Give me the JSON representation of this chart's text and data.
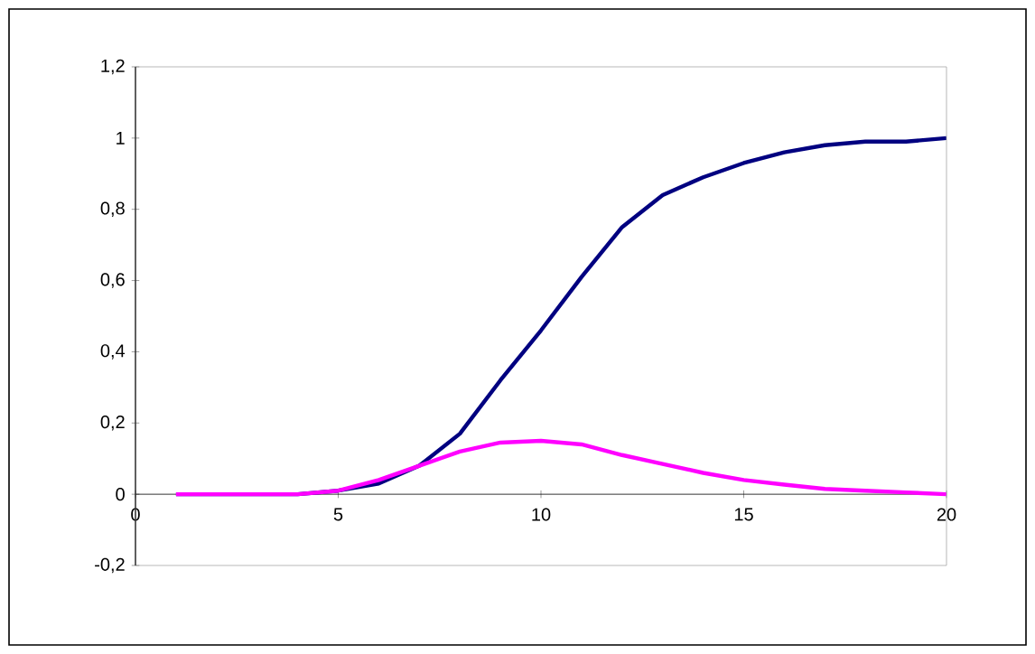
{
  "chart_data": {
    "type": "line",
    "x": [
      1,
      2,
      3,
      4,
      5,
      6,
      7,
      8,
      9,
      10,
      11,
      12,
      13,
      14,
      15,
      16,
      17,
      18,
      19,
      20
    ],
    "series": [
      {
        "color": "#000080",
        "values": [
          0,
          0,
          0,
          0,
          0.01,
          0.03,
          0.08,
          0.17,
          0.32,
          0.46,
          0.61,
          0.75,
          0.84,
          0.89,
          0.93,
          0.96,
          0.98,
          0.99,
          0.99,
          1.0
        ]
      },
      {
        "color": "#ff00ff",
        "values": [
          0,
          0,
          0,
          0,
          0.01,
          0.04,
          0.08,
          0.12,
          0.145,
          0.15,
          0.14,
          0.11,
          0.085,
          0.06,
          0.04,
          0.027,
          0.015,
          0.01,
          0.005,
          0
        ]
      }
    ],
    "xlim": [
      0,
      20
    ],
    "xticks": [
      0,
      5,
      10,
      15,
      20
    ],
    "ylim": [
      -0.2,
      1.2
    ],
    "yticks": [
      {
        "value": -0.2,
        "label": "-0,2"
      },
      {
        "value": 0,
        "label": "0"
      },
      {
        "value": 0.2,
        "label": "0,2"
      },
      {
        "value": 0.4,
        "label": "0,4"
      },
      {
        "value": 0.6,
        "label": "0,6"
      },
      {
        "value": 0.8,
        "label": "0,8"
      },
      {
        "value": 1,
        "label": "1"
      },
      {
        "value": 1.2,
        "label": "1,2"
      }
    ],
    "grid": false,
    "marker": "none",
    "line_style": "solid"
  }
}
